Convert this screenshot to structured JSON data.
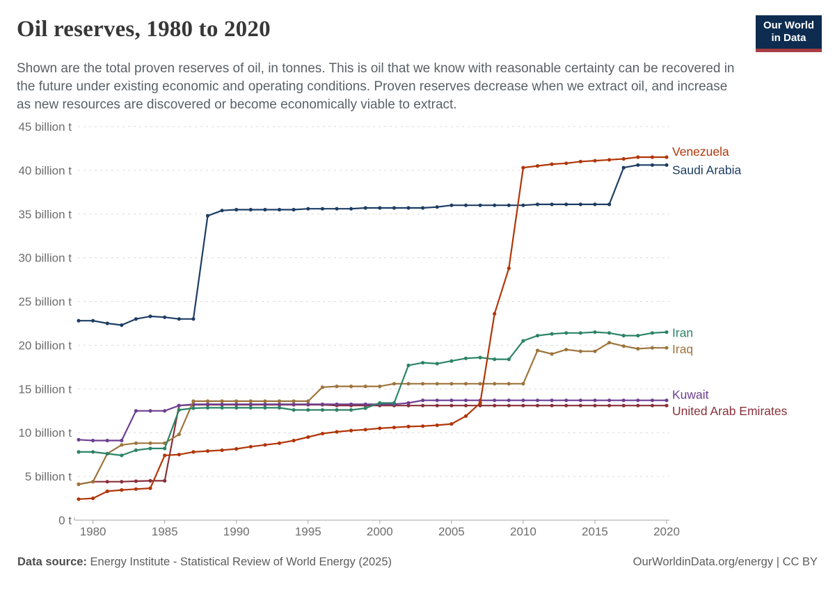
{
  "header": {
    "title": "Oil reserves, 1980 to 2020",
    "logo": {
      "line1": "Our World",
      "line2": "in Data"
    }
  },
  "subtitle": "Shown are the total proven reserves of oil, in tonnes. This is oil that we know with reasonable certainty can be recovered in the future under existing economic and operating conditions. Proven reserves decrease when we extract oil, and increase as new resources are discovered or become economically viable to extract.",
  "footer": {
    "source_label": "Data source:",
    "source_text": "Energy Institute - Statistical Review of World Energy (2025)",
    "rights": "OurWorldinData.org/energy | CC BY"
  },
  "colors": {
    "logo_bg": "#0d2c50",
    "logo_stripe": "#a83d44",
    "grid": "#d9d9d9",
    "axis": "#a3a3a3",
    "tick_text": "#6d6d6d"
  },
  "chart_data": {
    "type": "line",
    "title": "Oil reserves, 1980 to 2020",
    "xlabel": "",
    "ylabel": "",
    "unit": "billion tonnes",
    "grid": "dashed horizontal gridlines",
    "legend": "colored series labels at right edge of plot",
    "xlim": [
      1979,
      2020
    ],
    "ylim": [
      0,
      45
    ],
    "xticks": [
      1980,
      1985,
      1990,
      1995,
      2000,
      2005,
      2010,
      2015,
      2020
    ],
    "yticks": [
      {
        "value": 0,
        "label": "0 t"
      },
      {
        "value": 5,
        "label": "5 billion t"
      },
      {
        "value": 10,
        "label": "10 billion t"
      },
      {
        "value": 15,
        "label": "15 billion t"
      },
      {
        "value": 20,
        "label": "20 billion t"
      },
      {
        "value": 25,
        "label": "25 billion t"
      },
      {
        "value": 30,
        "label": "30 billion t"
      },
      {
        "value": 35,
        "label": "35 billion t"
      },
      {
        "value": 40,
        "label": "40 billion t"
      },
      {
        "value": 45,
        "label": "45 billion t"
      }
    ],
    "x": [
      1979,
      1980,
      1981,
      1982,
      1983,
      1984,
      1985,
      1986,
      1987,
      1988,
      1989,
      1990,
      1991,
      1992,
      1993,
      1994,
      1995,
      1996,
      1997,
      1998,
      1999,
      2000,
      2001,
      2002,
      2003,
      2004,
      2005,
      2006,
      2007,
      2008,
      2009,
      2010,
      2011,
      2012,
      2013,
      2014,
      2015,
      2016,
      2017,
      2018,
      2019,
      2020
    ],
    "series": [
      {
        "name": "Venezuela",
        "color": "#b13507",
        "label_dy": -8,
        "values": [
          2.4,
          2.5,
          3.3,
          3.45,
          3.55,
          3.65,
          7.4,
          7.5,
          7.8,
          7.9,
          8.0,
          8.15,
          8.4,
          8.6,
          8.8,
          9.1,
          9.5,
          9.9,
          10.1,
          10.25,
          10.35,
          10.5,
          10.6,
          10.7,
          10.75,
          10.85,
          11.0,
          11.9,
          13.4,
          23.6,
          28.8,
          40.3,
          40.5,
          40.7,
          40.8,
          41.0,
          41.1,
          41.2,
          41.3,
          41.5,
          41.5,
          41.5
        ]
      },
      {
        "name": "Saudi Arabia",
        "color": "#1d3d63",
        "label_dy": 7,
        "values": [
          22.8,
          22.8,
          22.5,
          22.3,
          23.0,
          23.3,
          23.2,
          23.0,
          23.0,
          34.8,
          35.4,
          35.5,
          35.5,
          35.5,
          35.5,
          35.5,
          35.6,
          35.6,
          35.6,
          35.6,
          35.7,
          35.7,
          35.7,
          35.7,
          35.7,
          35.8,
          36.0,
          36.0,
          36.0,
          36.0,
          36.0,
          36.0,
          36.1,
          36.1,
          36.1,
          36.1,
          36.1,
          36.1,
          40.3,
          40.6,
          40.6,
          40.6
        ]
      },
      {
        "name": "Iran",
        "color": "#2c8465",
        "label_dy": 1,
        "values": [
          7.8,
          7.8,
          7.6,
          7.4,
          8.0,
          8.2,
          8.2,
          12.6,
          12.8,
          12.85,
          12.85,
          12.85,
          12.85,
          12.85,
          12.85,
          12.6,
          12.6,
          12.6,
          12.6,
          12.6,
          12.8,
          13.4,
          13.4,
          17.7,
          18.0,
          17.9,
          18.2,
          18.5,
          18.6,
          18.4,
          18.4,
          20.5,
          21.1,
          21.3,
          21.4,
          21.4,
          21.5,
          21.4,
          21.1,
          21.1,
          21.4,
          21.5
        ]
      },
      {
        "name": "Iraq",
        "color": "#9d743c",
        "label_dy": 2,
        "values": [
          4.1,
          4.4,
          7.6,
          8.6,
          8.8,
          8.8,
          8.8,
          9.8,
          13.6,
          13.6,
          13.6,
          13.6,
          13.6,
          13.6,
          13.6,
          13.6,
          13.6,
          15.2,
          15.3,
          15.3,
          15.3,
          15.3,
          15.6,
          15.6,
          15.6,
          15.6,
          15.6,
          15.6,
          15.6,
          15.6,
          15.6,
          15.6,
          19.4,
          19.0,
          19.5,
          19.3,
          19.3,
          20.3,
          19.9,
          19.6,
          19.7,
          19.7
        ]
      },
      {
        "name": "Kuwait",
        "color": "#6d3e91",
        "label_dy": -8,
        "values": [
          9.2,
          9.1,
          9.1,
          9.1,
          12.5,
          12.5,
          12.5,
          13.1,
          13.25,
          13.25,
          13.25,
          13.25,
          13.25,
          13.25,
          13.25,
          13.25,
          13.25,
          13.25,
          13.25,
          13.25,
          13.25,
          13.25,
          13.25,
          13.4,
          13.7,
          13.7,
          13.7,
          13.7,
          13.7,
          13.7,
          13.7,
          13.7,
          13.7,
          13.7,
          13.7,
          13.7,
          13.7,
          13.7,
          13.7,
          13.7,
          13.7,
          13.7
        ]
      },
      {
        "name": "United Arab Emirates",
        "color": "#883039",
        "label_dy": 8,
        "values": [
          4.1,
          4.4,
          4.4,
          4.4,
          4.45,
          4.5,
          4.5,
          13.1,
          13.2,
          13.2,
          13.2,
          13.2,
          13.2,
          13.2,
          13.2,
          13.2,
          13.2,
          13.2,
          13.1,
          13.1,
          13.1,
          13.1,
          13.1,
          13.1,
          13.1,
          13.1,
          13.1,
          13.1,
          13.1,
          13.1,
          13.1,
          13.1,
          13.1,
          13.1,
          13.1,
          13.1,
          13.1,
          13.1,
          13.1,
          13.1,
          13.1,
          13.1
        ]
      }
    ]
  }
}
